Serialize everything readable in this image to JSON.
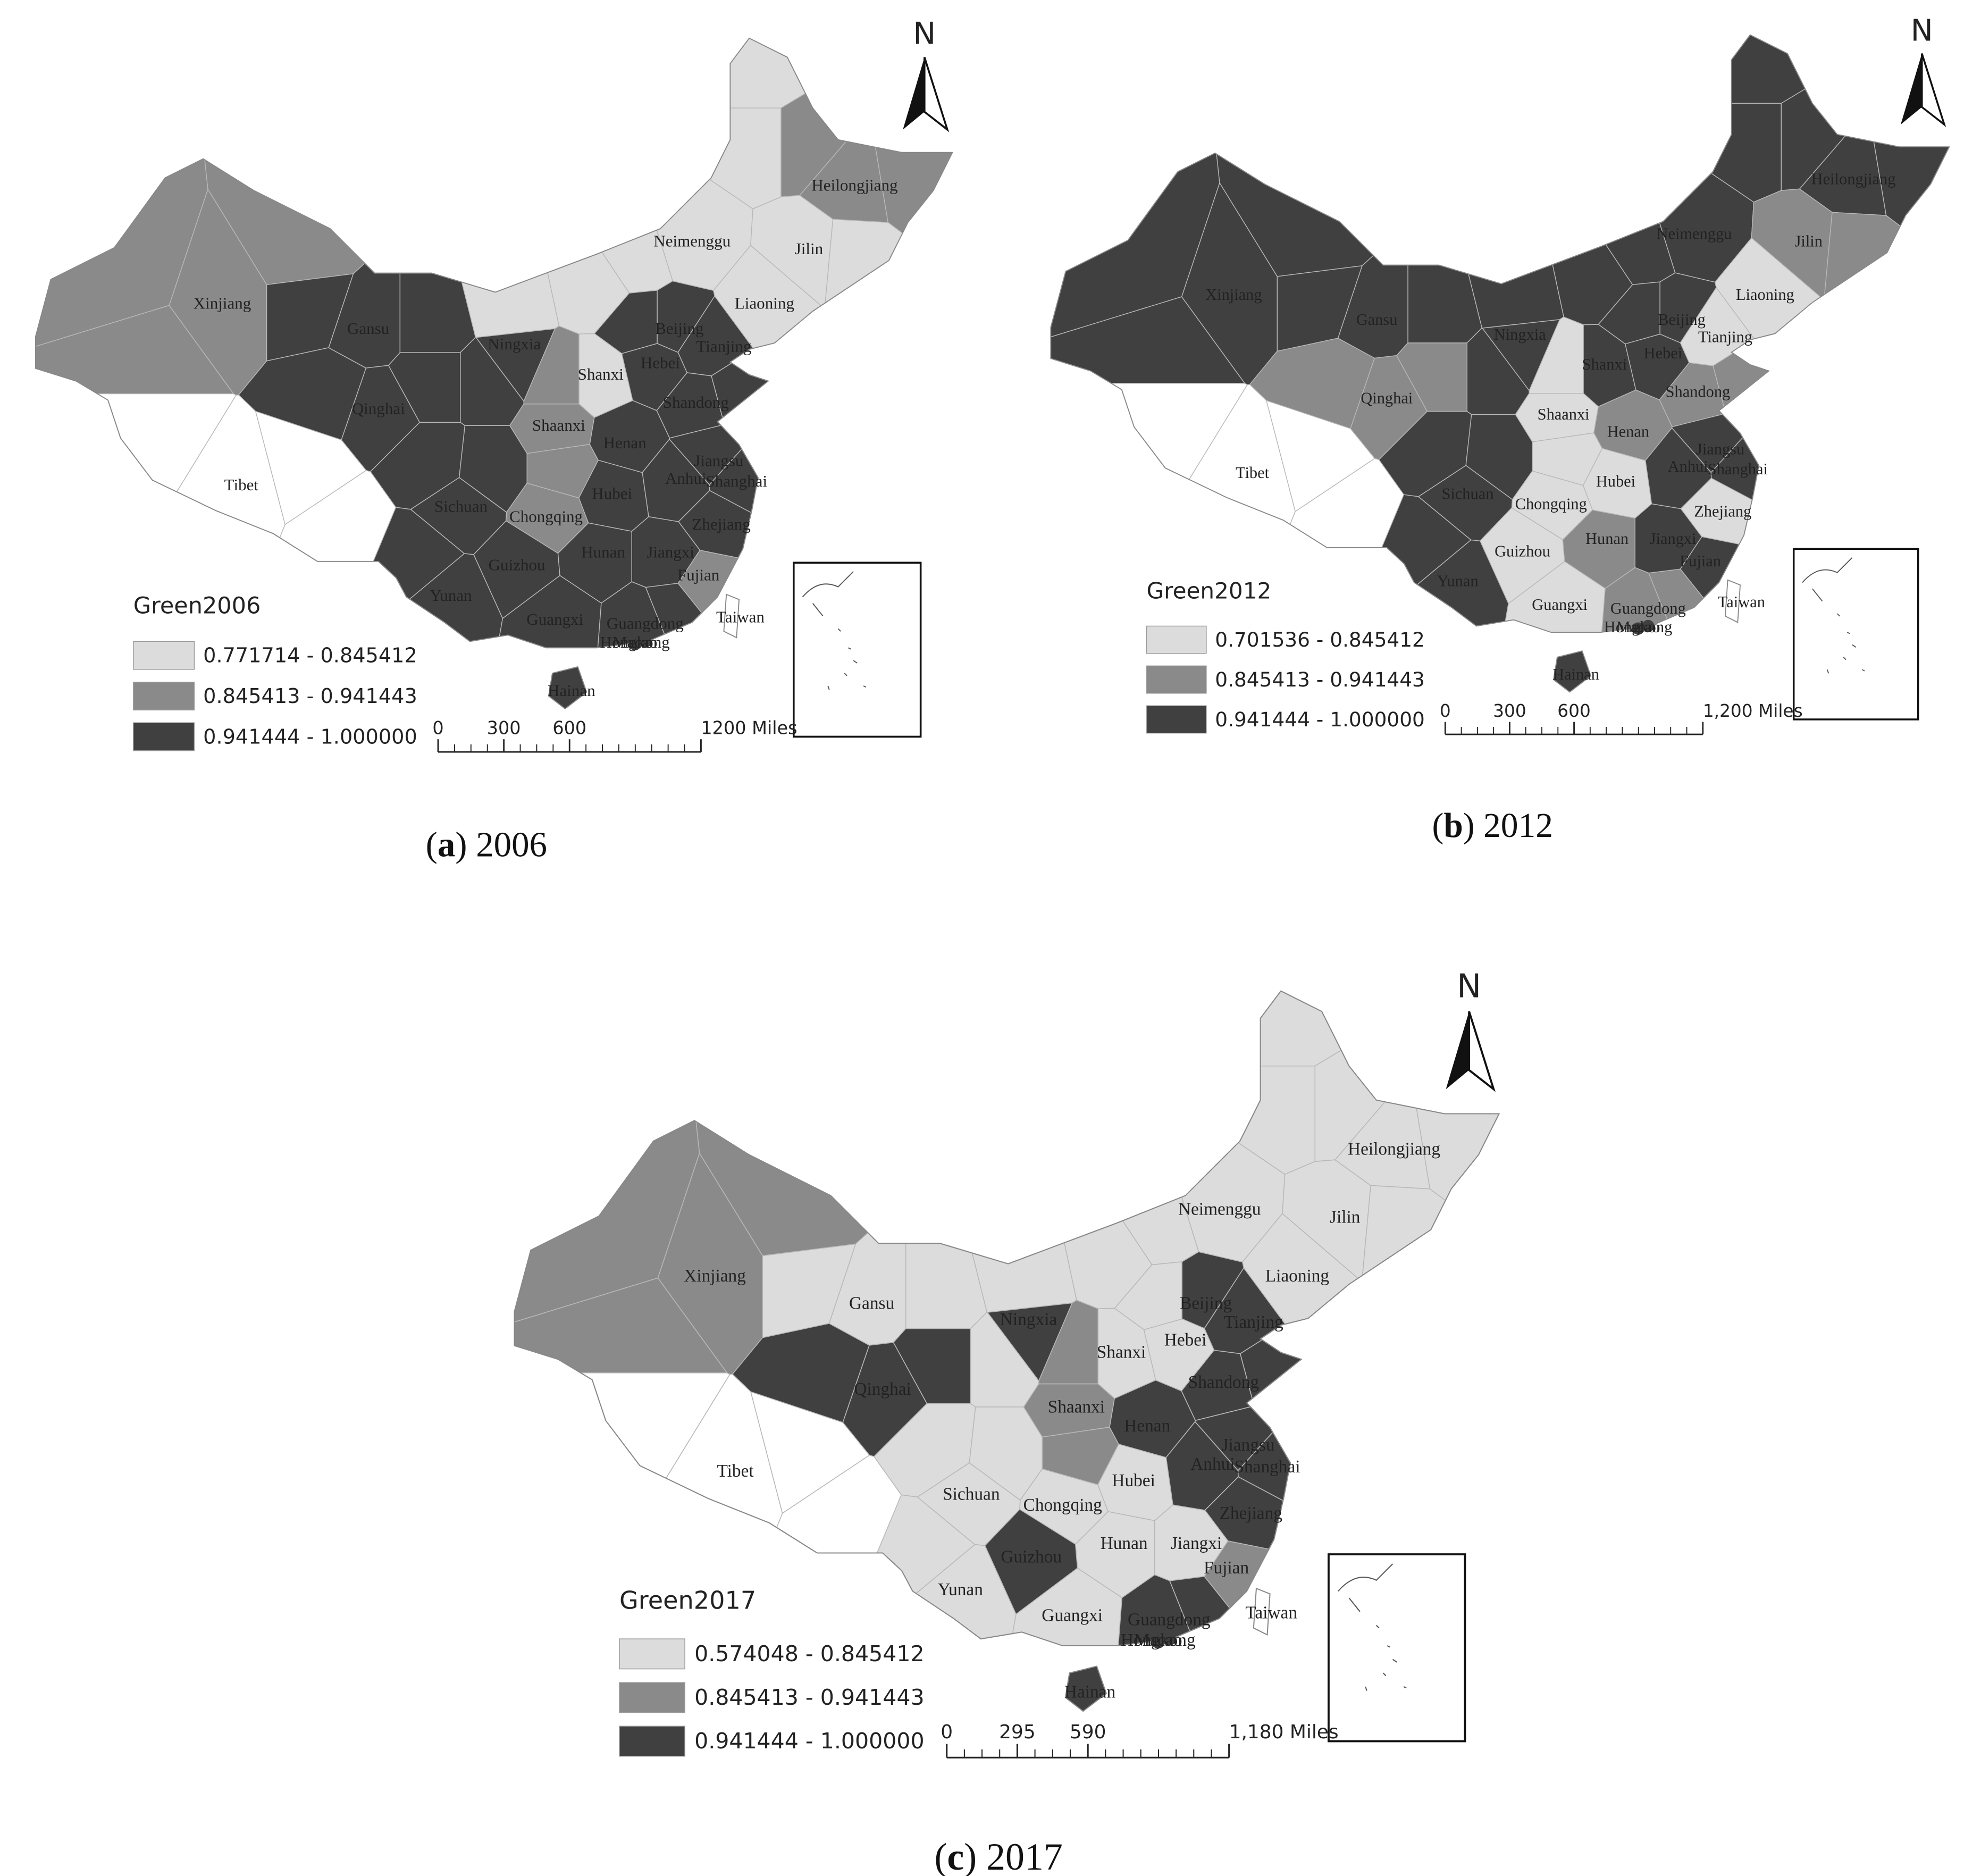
{
  "provinces": [
    "Xinjiang",
    "Tibet",
    "Qinghai",
    "Gansu",
    "Ningxia",
    "Shaanxi",
    "Shanxi",
    "Neimenggu",
    "Heilongjiang",
    "Jilin",
    "Liaoning",
    "Beijing",
    "Tianjing",
    "Hebei",
    "Shandong",
    "Henan",
    "Jiangsu",
    "Anhui",
    "Shanghai",
    "Hubei",
    "Sichuan",
    "Chongqing",
    "Zhejiang",
    "Guizhou",
    "Hunan",
    "Jiangxi",
    "Fujian",
    "Yunan",
    "Guangxi",
    "Guangdong",
    "Hainan",
    "Taiwan",
    "Hongkong",
    "Macao"
  ],
  "panels": [
    {
      "north": "N",
      "legend_title": "Green2006",
      "classes": [
        {
          "label": "0.771714 - 0.845412",
          "color": "#dcdcdc"
        },
        {
          "label": "0.845413 - 0.941443",
          "color": "#8a8a8a"
        },
        {
          "label": "0.941444 - 1.000000",
          "color": "#404040"
        }
      ],
      "scale_ticks": [
        0,
        300,
        600,
        {
          "value": 1200,
          "label": "1200 Miles"
        }
      ],
      "caption": {
        "open": "(",
        "letter": "a",
        "rest": ") 2006"
      },
      "province_class": [
        1,
        null,
        2,
        2,
        2,
        1,
        0,
        0,
        1,
        0,
        0,
        2,
        2,
        2,
        2,
        2,
        2,
        2,
        2,
        2,
        2,
        1,
        2,
        2,
        2,
        2,
        1,
        2,
        2,
        2,
        2,
        null,
        2,
        2
      ]
    },
    {
      "north": "N",
      "legend_title": "Green2012",
      "classes": [
        {
          "label": "0.701536 - 0.845412",
          "color": "#dcdcdc"
        },
        {
          "label": "0.845413 - 0.941443",
          "color": "#8a8a8a"
        },
        {
          "label": "0.941444 - 1.000000",
          "color": "#404040"
        }
      ],
      "scale_ticks": [
        0,
        300,
        600,
        {
          "value": 1200,
          "label": "1,200 Miles"
        }
      ],
      "caption": {
        "open": "(",
        "letter": "b",
        "rest": ") 2012"
      },
      "province_class": [
        2,
        null,
        1,
        2,
        2,
        0,
        2,
        2,
        2,
        1,
        0,
        2,
        0,
        2,
        1,
        1,
        2,
        2,
        2,
        0,
        2,
        0,
        0,
        0,
        1,
        2,
        2,
        2,
        0,
        1,
        2,
        null,
        2,
        2
      ]
    },
    {
      "north": "N",
      "legend_title": "Green2017",
      "classes": [
        {
          "label": "0.574048 - 0.845412",
          "color": "#dcdcdc"
        },
        {
          "label": "0.845413 - 0.941443",
          "color": "#8a8a8a"
        },
        {
          "label": "0.941444 - 1.000000",
          "color": "#404040"
        }
      ],
      "scale_ticks": [
        0,
        295,
        590,
        {
          "value": 1180,
          "label": "1,180 Miles"
        }
      ],
      "caption": {
        "open": "(",
        "letter": "c",
        "rest": ") 2017"
      },
      "province_class": [
        1,
        null,
        2,
        0,
        2,
        1,
        0,
        0,
        0,
        0,
        0,
        2,
        2,
        0,
        2,
        2,
        2,
        2,
        2,
        0,
        0,
        0,
        2,
        2,
        0,
        0,
        1,
        0,
        0,
        2,
        2,
        null,
        2,
        2
      ]
    }
  ]
}
